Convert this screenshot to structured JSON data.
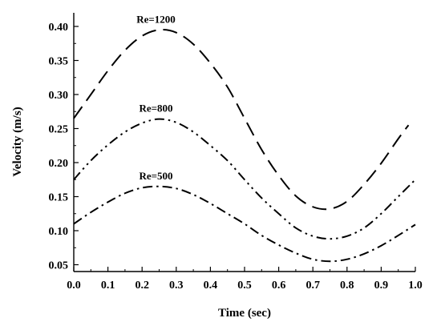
{
  "chart_data": {
    "type": "line",
    "xlabel": "Time (sec)",
    "ylabel": "Velocity (m/s)",
    "xlim": [
      0.0,
      1.0
    ],
    "ylim": [
      0.04,
      0.42
    ],
    "grid": false,
    "x_ticks": [
      "0.0",
      "0.1",
      "0.2",
      "0.3",
      "0.4",
      "0.5",
      "0.6",
      "0.7",
      "0.8",
      "0.9",
      "1.0"
    ],
    "y_ticks": [
      "0.05",
      "0.10",
      "0.15",
      "0.20",
      "0.25",
      "0.30",
      "0.35",
      "0.40"
    ],
    "series": [
      {
        "name": "Re=1200",
        "label": "Re=1200",
        "dash": "long-dash",
        "x": [
          0.0,
          0.05,
          0.1,
          0.15,
          0.2,
          0.25,
          0.3,
          0.35,
          0.4,
          0.45,
          0.5,
          0.55,
          0.6,
          0.65,
          0.7,
          0.75,
          0.8,
          0.85,
          0.9,
          0.95,
          0.98
        ],
        "y": [
          0.265,
          0.3,
          0.335,
          0.365,
          0.386,
          0.395,
          0.391,
          0.374,
          0.346,
          0.311,
          0.265,
          0.219,
          0.181,
          0.151,
          0.135,
          0.132,
          0.143,
          0.168,
          0.199,
          0.235,
          0.255
        ]
      },
      {
        "name": "Re=800",
        "label": "Re=800",
        "dash": "dash-dot-dot",
        "x": [
          0.0,
          0.05,
          0.1,
          0.15,
          0.2,
          0.25,
          0.3,
          0.35,
          0.4,
          0.45,
          0.5,
          0.55,
          0.6,
          0.65,
          0.7,
          0.75,
          0.8,
          0.85,
          0.9,
          0.95,
          1.0
        ],
        "y": [
          0.175,
          0.203,
          0.226,
          0.245,
          0.258,
          0.264,
          0.259,
          0.245,
          0.225,
          0.203,
          0.175,
          0.148,
          0.125,
          0.104,
          0.092,
          0.088,
          0.092,
          0.104,
          0.125,
          0.15,
          0.175
        ]
      },
      {
        "name": "Re=500",
        "label": "Re=500",
        "dash": "dash-dot",
        "x": [
          0.0,
          0.05,
          0.1,
          0.15,
          0.2,
          0.25,
          0.3,
          0.35,
          0.4,
          0.45,
          0.5,
          0.55,
          0.6,
          0.65,
          0.7,
          0.75,
          0.8,
          0.85,
          0.9,
          0.95,
          1.0
        ],
        "y": [
          0.11,
          0.127,
          0.142,
          0.155,
          0.163,
          0.165,
          0.162,
          0.153,
          0.14,
          0.125,
          0.11,
          0.093,
          0.079,
          0.067,
          0.058,
          0.055,
          0.058,
          0.066,
          0.078,
          0.093,
          0.109
        ]
      }
    ]
  }
}
